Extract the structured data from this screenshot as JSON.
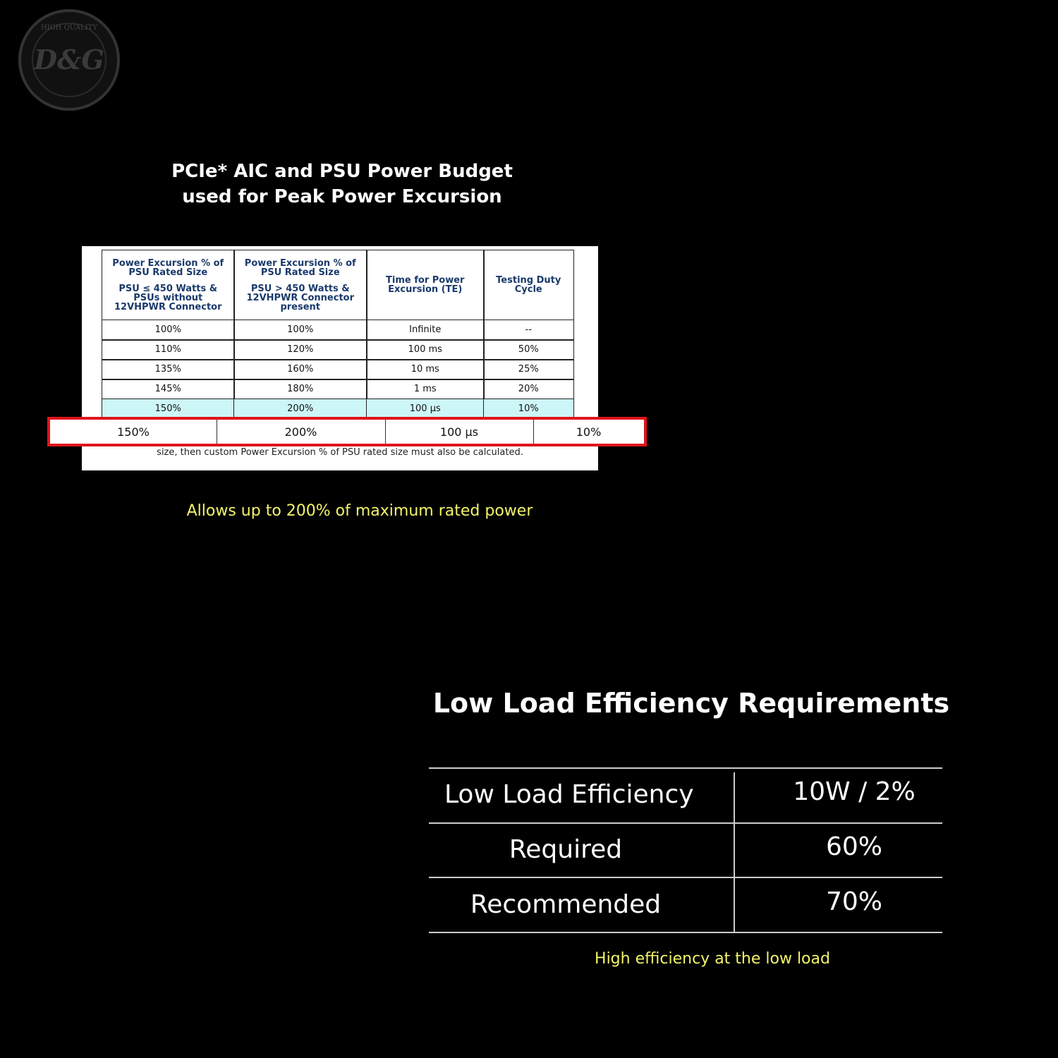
{
  "logo": {
    "top_text": "HIGH QUALITY",
    "brand": "D&G"
  },
  "budget": {
    "title_lines": [
      "PCIe* AIC and PSU Power Budget",
      "used for Peak Power Excursion"
    ],
    "headers": [
      [
        "Power Excursion % of PSU Rated Size",
        "PSU ≤ 450 Watts & PSUs without 12VHPWR Connector"
      ],
      [
        "Power Excursion % of PSU Rated Size",
        "PSU > 450 Watts & 12VHPWR Connector present"
      ],
      [
        "Time for Power Excursion (TE)"
      ],
      [
        "Testing Duty Cycle"
      ]
    ],
    "rows": [
      [
        "100%",
        "100%",
        "Infinite",
        "--"
      ],
      [
        "110%",
        "120%",
        "100 ms",
        "50%"
      ],
      [
        "135%",
        "160%",
        "10 ms",
        "25%"
      ],
      [
        "145%",
        "180%",
        "1 ms",
        "20%"
      ],
      [
        "150%",
        "200%",
        "100 µs",
        "10%"
      ]
    ],
    "highlight": [
      "150%",
      "200%",
      "100 µs",
      "10%"
    ],
    "footnote": "size, then custom Power Excursion % of PSU rated size must also be calculated.",
    "caption": "Allows up to 200% of maximum rated power"
  },
  "efficiency": {
    "title": "Low Load Efficiency Requirements",
    "rows": [
      [
        "Low Load Efficiency",
        "10W / 2%"
      ],
      [
        "Required",
        "60%"
      ],
      [
        "Recommended",
        "70%"
      ]
    ],
    "caption": "High efficiency at the low load"
  }
}
